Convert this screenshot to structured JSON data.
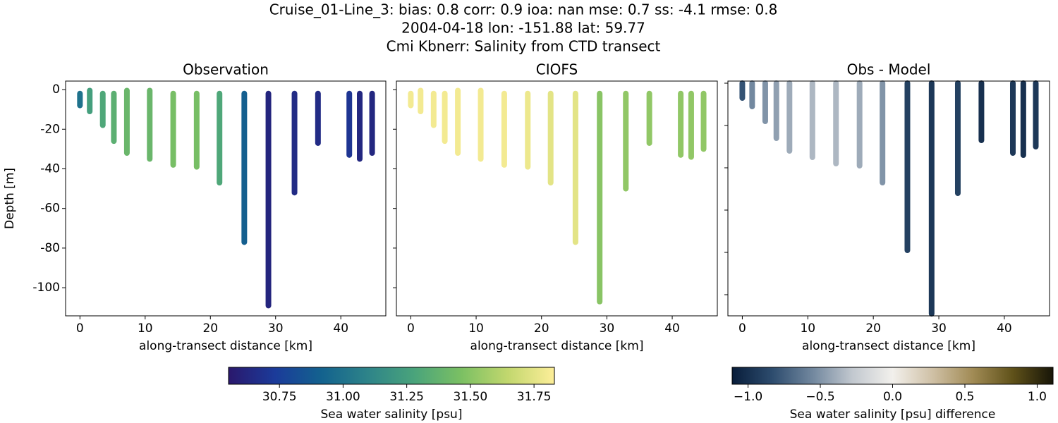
{
  "suptitle": [
    "Cruise_01-Line_3: bias: 0.8  corr: 0.9  ioa: nan  mse: 0.7  ss: -4.1  rmse: 0.8",
    "2004-04-18 lon: -151.88 lat: 59.77",
    "Cmi Kbnerr: Salinity from CTD transect"
  ],
  "chart_data": [
    {
      "type": "profile",
      "title": "Observation",
      "xlabel": "along-transect distance [km]",
      "ylabel": "Depth [m]",
      "colorbar": 0,
      "x": [
        0,
        1.5,
        3.5,
        5.2,
        7.2,
        10.7,
        14.3,
        17.9,
        21.4,
        25.2,
        28.9,
        32.9,
        36.5,
        41.3,
        42.9,
        44.8
      ],
      "top": [
        -2,
        -0.5,
        -2,
        -2,
        -0.5,
        -0.5,
        -2,
        -2,
        -2,
        -2,
        -2,
        -2,
        -2,
        -2,
        -2,
        -2
      ],
      "bottom": [
        -8,
        -11,
        -18,
        -26,
        -32,
        -35,
        -38,
        -39,
        -47,
        -77,
        -109,
        -52,
        -27,
        -33,
        -35,
        -32
      ],
      "values": [
        31.0,
        31.25,
        31.3,
        31.35,
        31.4,
        31.4,
        31.45,
        31.45,
        31.3,
        30.9,
        30.62,
        30.65,
        30.65,
        30.7,
        30.63,
        30.63
      ],
      "xlim": [
        -2.2,
        46.9
      ],
      "ylim": [
        -114.2,
        4.3
      ],
      "xticks": [
        0,
        10,
        20,
        30,
        40
      ],
      "yticks": [
        -100,
        -80,
        -60,
        -40,
        -20,
        0
      ],
      "ytick_labels": true
    },
    {
      "type": "profile",
      "title": "CIOFS",
      "xlabel": "along-transect distance [km]",
      "colorbar": 0,
      "x": [
        0,
        1.5,
        3.5,
        5.2,
        7.2,
        10.7,
        14.3,
        17.9,
        21.4,
        25.2,
        28.9,
        32.9,
        36.5,
        41.3,
        42.9,
        44.8
      ],
      "top": [
        -2,
        -0.5,
        -2,
        -2,
        -0.5,
        -0.5,
        -2,
        -2,
        -2,
        -2,
        -2,
        -2,
        -2,
        -2,
        -2,
        -2
      ],
      "bottom": [
        -8,
        -11,
        -18,
        -26,
        -32,
        -35,
        -38,
        -39,
        -47,
        -77,
        -107,
        -50,
        -27,
        -33,
        -34,
        -30
      ],
      "values": [
        31.8,
        31.8,
        31.8,
        31.8,
        31.8,
        31.8,
        31.8,
        31.78,
        31.75,
        31.75,
        31.5,
        31.52,
        31.52,
        31.52,
        31.52,
        31.52
      ],
      "xlim": [
        -2.2,
        46.9
      ],
      "ylim": [
        -114.2,
        4.3
      ],
      "xticks": [
        0,
        10,
        20,
        30,
        40
      ],
      "yticks": [
        -100,
        -80,
        -60,
        -40,
        -20,
        0
      ],
      "ytick_labels": false
    },
    {
      "type": "profile",
      "title": "Obs - Model",
      "xlabel": "along-transect distance [km]",
      "colorbar": 1,
      "x": [
        0,
        1.5,
        3.5,
        5.2,
        7.2,
        10.7,
        14.3,
        17.9,
        21.4,
        25.2,
        28.9,
        32.9,
        36.5,
        41.3,
        42.9,
        44.8
      ],
      "top": [
        0,
        0,
        0,
        0,
        0,
        0,
        0,
        0,
        0,
        0,
        0,
        0,
        0,
        0,
        0,
        0
      ],
      "bottom": [
        -7,
        -11,
        -18,
        -26,
        -32,
        -35,
        -38,
        -39,
        -47,
        -79,
        -109,
        -52,
        -27,
        -33,
        -34,
        -30
      ],
      "values": [
        -0.8,
        -0.55,
        -0.5,
        -0.45,
        -0.4,
        -0.35,
        -0.35,
        -0.4,
        -0.5,
        -0.9,
        -0.95,
        -0.9,
        -1.0,
        -0.95,
        -1.0,
        -0.95
      ],
      "xlim": [
        -2.2,
        46.9
      ],
      "ylim": [
        -110,
        1
      ],
      "xticks": [
        0,
        10,
        20,
        30,
        40
      ],
      "yticks": [
        -100,
        -80,
        -60,
        -40,
        -20,
        0
      ],
      "ytick_labels": false
    }
  ],
  "colorbars": [
    {
      "label": "Sea water salinity [psu]",
      "lim": [
        30.55,
        31.83
      ],
      "ticks": [
        {
          "value": 30.75,
          "label": "30.75"
        },
        {
          "value": 31.0,
          "label": "31.00"
        },
        {
          "value": 31.25,
          "label": "31.25"
        },
        {
          "value": 31.5,
          "label": "31.50"
        },
        {
          "value": 31.75,
          "label": "31.75"
        }
      ],
      "colormap": [
        "#2a186c",
        "#1b3b9a",
        "#13628e",
        "#2e8489",
        "#4aa47b",
        "#7bc063",
        "#c2d76e",
        "#fdee99"
      ]
    },
    {
      "label": "Sea water salinity [psu] difference",
      "lim": [
        -1.11,
        1.11
      ],
      "ticks": [
        {
          "value": -1.0,
          "label": "−1.0"
        },
        {
          "value": -0.5,
          "label": "−0.5"
        },
        {
          "value": 0.0,
          "label": "0.0"
        },
        {
          "value": 0.5,
          "label": "0.5"
        },
        {
          "value": 1.0,
          "label": "1.0"
        }
      ],
      "colormap": [
        "#081d3a",
        "#2d4c6e",
        "#71879e",
        "#c2c8cf",
        "#f2f0ec",
        "#cfc0a5",
        "#a18b55",
        "#5f5119",
        "#171508"
      ]
    }
  ]
}
